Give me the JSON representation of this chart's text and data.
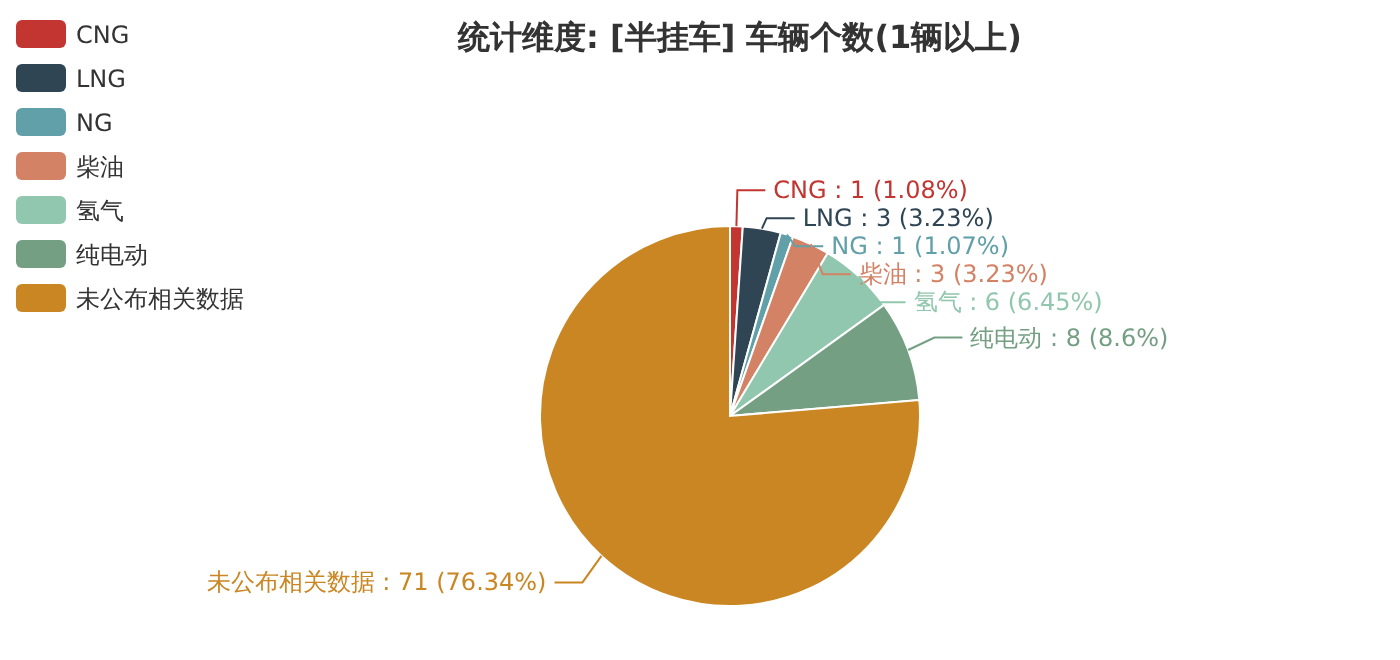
{
  "chart_data": {
    "type": "pie",
    "title": "统计维度: [半挂车] 车辆个数(1辆以上)",
    "categories": [
      "CNG",
      "LNG",
      "NG",
      "柴油",
      "氢气",
      "纯电动",
      "未公布相关数据"
    ],
    "values": [
      1,
      3,
      1,
      3,
      6,
      8,
      71
    ],
    "value_labels": [
      ": 1 (1.08%)",
      ": 3 (3.23%)",
      ": 1 (1.07%)",
      ": 3 (3.23%)",
      ": 6 (6.45%)",
      ": 8 (8.6%)",
      ": 71 (76.34%)"
    ],
    "colors": [
      "#c23531",
      "#2f4554",
      "#61a0a8",
      "#d48265",
      "#91c7ae",
      "#749f83",
      "#ca8622"
    ],
    "legend": "top left"
  }
}
